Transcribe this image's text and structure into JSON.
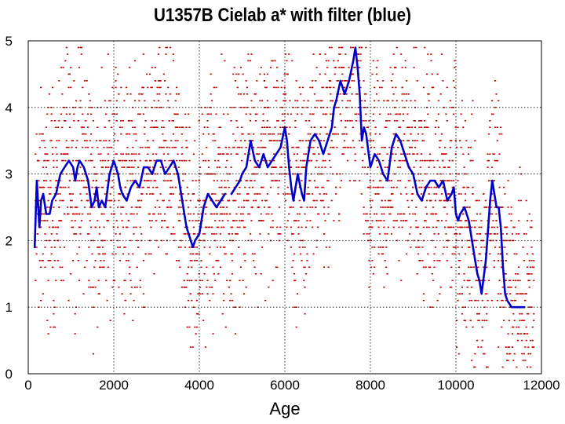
{
  "chart_data": {
    "type": "line",
    "title": "U1357B Cielab a* with filter (blue)",
    "xlabel": "Age",
    "ylabel": "",
    "xlim": [
      0,
      12000
    ],
    "ylim": [
      0,
      5
    ],
    "x_ticks": [
      "0",
      "2000",
      "4000",
      "6000",
      "8000",
      "10000",
      "12000"
    ],
    "y_ticks": [
      "0",
      "1",
      "2",
      "3",
      "4",
      "5"
    ],
    "grid": "dotted",
    "colors": {
      "raw": "#c00000",
      "filter": "#0000c8"
    },
    "series": [
      {
        "style": "scatter",
        "color": "#c00000",
        "x_range": [
          150,
          11800
        ],
        "y_range": [
          0.1,
          4.9
        ],
        "note_quantized_step": 0.1
      },
      {
        "style": "line",
        "color": "#0000c8",
        "segments": [
          {
            "x": [
              150,
              200,
              260,
              300,
              350,
              420,
              500,
              560,
              650,
              750,
              850,
              950,
              1050,
              1100,
              1150,
              1200,
              1300,
              1400,
              1480,
              1550,
              1600,
              1650,
              1720,
              1800,
              1900,
              2000,
              2100,
              2150,
              2200,
              2300,
              2400,
              2500,
              2600,
              2700,
              2800,
              2900,
              3000,
              3100,
              3200,
              3300,
              3400,
              3500,
              3600,
              3700,
              3750,
              3800,
              3850,
              3900,
              4000,
              4100,
              4200,
              4300,
              4400,
              4500,
              4600
            ],
            "y": [
              1.9,
              2.9,
              2.2,
              2.6,
              2.7,
              2.4,
              2.4,
              2.6,
              2.7,
              3.0,
              3.1,
              3.2,
              3.1,
              2.9,
              3.1,
              3.2,
              3.1,
              2.9,
              2.5,
              2.6,
              2.8,
              2.5,
              2.6,
              2.5,
              3.0,
              3.2,
              3.0,
              2.8,
              2.7,
              2.6,
              2.8,
              2.9,
              2.8,
              3.1,
              3.1,
              3.0,
              3.2,
              3.2,
              3.0,
              3.1,
              3.2,
              3.0,
              2.6,
              2.2,
              2.1,
              2.0,
              1.9,
              2.0,
              2.1,
              2.5,
              2.7,
              2.6,
              2.5,
              2.6,
              2.7
            ]
          },
          {
            "x": [
              4750,
              4850,
              4950,
              5000,
              5100,
              5200,
              5300,
              5400,
              5500,
              5600,
              5700,
              5800,
              5900,
              6000,
              6050,
              6100,
              6150,
              6200,
              6300,
              6400,
              6450,
              6500,
              6600,
              6700,
              6800,
              6900,
              7000,
              7100,
              7150,
              7200,
              7300,
              7400,
              7500,
              7600,
              7650,
              7700,
              7750,
              7800,
              7850,
              7900,
              8000,
              8100,
              8200,
              8300,
              8400,
              8500,
              8600,
              8700,
              8800,
              8900,
              9000,
              9100,
              9200,
              9300,
              9400,
              9500,
              9600,
              9700,
              9800,
              9900,
              9950,
              10000,
              10050,
              10100,
              10200,
              10300,
              10400,
              10500,
              10550,
              10600,
              10700,
              10800,
              10850,
              10900,
              10950,
              11000,
              11050,
              11100,
              11150,
              11200,
              11300,
              11400,
              11500,
              11600
            ],
            "y": [
              2.7,
              2.8,
              2.9,
              3.0,
              3.1,
              3.5,
              3.2,
              3.1,
              3.3,
              3.1,
              3.2,
              3.3,
              3.4,
              3.7,
              3.5,
              3.1,
              2.8,
              2.6,
              3.0,
              2.7,
              2.6,
              3.1,
              3.5,
              3.6,
              3.5,
              3.3,
              3.5,
              3.7,
              4.0,
              4.1,
              4.4,
              4.2,
              4.4,
              4.7,
              4.9,
              4.6,
              4.2,
              3.5,
              3.7,
              3.6,
              3.1,
              3.3,
              3.2,
              3.0,
              2.9,
              3.4,
              3.6,
              3.5,
              3.3,
              3.1,
              3.0,
              2.7,
              2.6,
              2.8,
              2.9,
              2.9,
              2.8,
              2.9,
              2.6,
              2.7,
              2.8,
              2.4,
              2.3,
              2.4,
              2.5,
              2.3,
              1.9,
              1.5,
              1.4,
              1.2,
              1.7,
              2.6,
              2.9,
              2.7,
              2.5,
              2.5,
              2.2,
              1.6,
              1.2,
              1.1,
              1.0,
              1.0,
              1.0,
              1.0
            ]
          }
        ]
      }
    ]
  }
}
